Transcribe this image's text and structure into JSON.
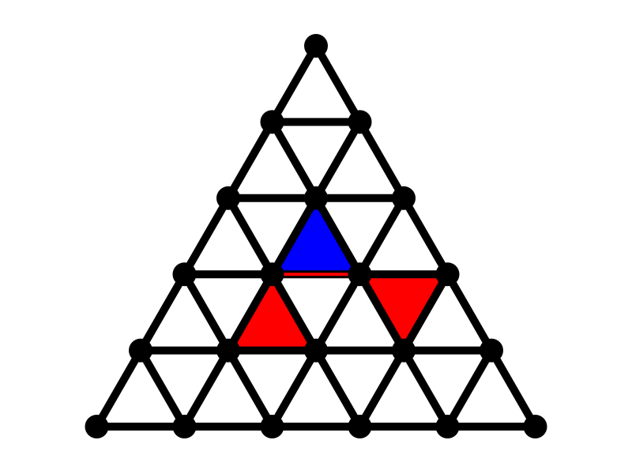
{
  "diagram": {
    "rows": 5,
    "colors": {
      "background": "#ffffff",
      "edge": "#000000",
      "node": "#000000",
      "blue": "#0000ff",
      "red": "#ff0000"
    },
    "highlighted_cells": [
      {
        "row": 2,
        "index": 1,
        "orientation": "up",
        "color": "blue"
      },
      {
        "row": 3,
        "index": 1,
        "orientation": "up",
        "color": "red"
      },
      {
        "row": 3,
        "index": 2,
        "orientation": "down",
        "color": "red"
      }
    ],
    "highlighted_edges": [
      {
        "from": [
          3,
          1
        ],
        "to": [
          3,
          2
        ],
        "color": "red"
      }
    ]
  }
}
